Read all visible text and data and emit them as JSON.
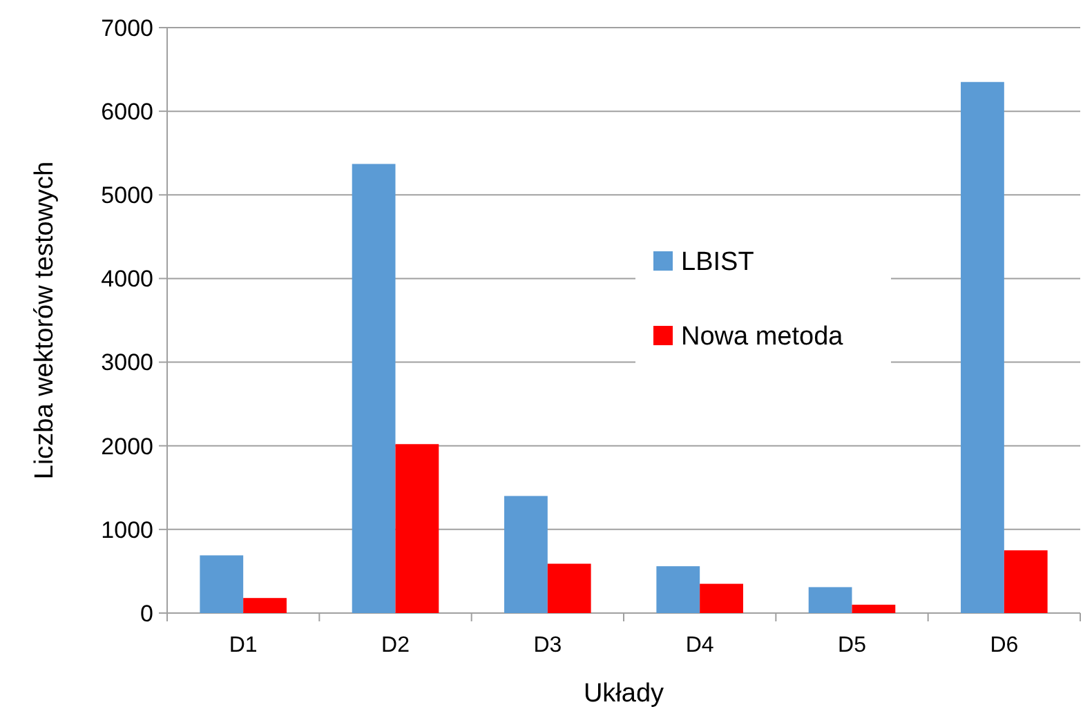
{
  "chart_data": {
    "type": "bar",
    "xlabel": "Układy",
    "ylabel": "Liczba wektorów testowych",
    "categories": [
      "D1",
      "D2",
      "D3",
      "D4",
      "D5",
      "D6"
    ],
    "series": [
      {
        "name": "LBIST",
        "color": "#5b9bd5",
        "values": [
          690,
          5370,
          1400,
          560,
          310,
          6350
        ]
      },
      {
        "name": "Nowa metoda",
        "color": "#ff0000",
        "values": [
          180,
          2020,
          590,
          350,
          100,
          750
        ]
      }
    ],
    "ylim": [
      0,
      7000
    ],
    "yticks": [
      0,
      1000,
      2000,
      3000,
      4000,
      5000,
      6000,
      7000
    ],
    "grid": "y",
    "legend": "right"
  }
}
